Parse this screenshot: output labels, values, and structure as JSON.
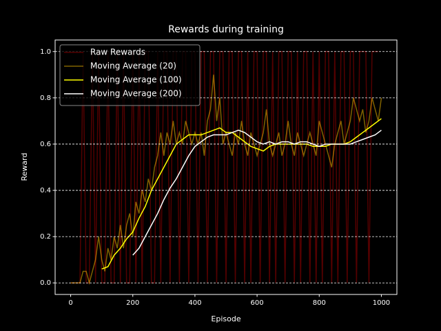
{
  "chart_data": {
    "type": "line",
    "title": "Rewards during training",
    "xlabel": "Episode",
    "ylabel": "Reward",
    "xlim": [
      -50,
      1050
    ],
    "ylim": [
      -0.05,
      1.05
    ],
    "xticks": [
      0,
      200,
      400,
      600,
      800,
      1000
    ],
    "yticks": [
      {
        "value": 0,
        "label": "0.0"
      },
      {
        "value": 0.2,
        "label": "0.2"
      },
      {
        "value": 0.4,
        "label": "0.4"
      },
      {
        "value": 0.6,
        "label": "0.6"
      },
      {
        "value": 0.8,
        "label": "0.8"
      },
      {
        "value": 1,
        "label": "1.0"
      }
    ],
    "grid": "y",
    "legend": "upper left",
    "series": [
      {
        "name": "Raw Rewards",
        "color": "#8b0000",
        "alpha": 0.6,
        "x": [
          0,
          10,
          20,
          30,
          40,
          50,
          60,
          70,
          80,
          90,
          100,
          110,
          120,
          130,
          140,
          150,
          160,
          170,
          180,
          190,
          200,
          210,
          220,
          230,
          240,
          250,
          260,
          270,
          280,
          290,
          300,
          310,
          320,
          330,
          340,
          350,
          360,
          370,
          380,
          390,
          400,
          410,
          420,
          430,
          440,
          450,
          460,
          470,
          480,
          490,
          500,
          510,
          520,
          530,
          540,
          550,
          560,
          570,
          580,
          590,
          600,
          610,
          620,
          630,
          640,
          650,
          660,
          670,
          680,
          690,
          700,
          710,
          720,
          730,
          740,
          750,
          760,
          770,
          780,
          790,
          800,
          810,
          820,
          830,
          840,
          850,
          860,
          870,
          880,
          890,
          900,
          910,
          920,
          930,
          940,
          950,
          960,
          970,
          980,
          990
        ],
        "values": [
          0,
          0,
          0,
          0,
          1,
          0,
          0,
          1,
          0,
          1,
          0,
          0,
          1,
          0,
          0,
          1,
          0,
          1,
          0,
          0,
          1,
          0,
          1,
          0,
          1,
          1,
          0,
          0,
          1,
          0,
          1,
          1,
          0,
          1,
          1,
          0,
          1,
          1,
          0,
          1,
          1,
          0,
          1,
          1,
          0,
          1,
          1,
          0,
          1,
          1,
          0,
          1,
          1,
          0,
          1,
          1,
          0,
          1,
          0,
          1,
          1,
          0,
          1,
          1,
          0,
          1,
          0,
          1,
          1,
          0,
          1,
          1,
          0,
          1,
          0,
          1,
          1,
          0,
          1,
          0,
          1,
          0,
          1,
          1,
          0,
          1,
          0,
          1,
          1,
          0,
          1,
          1,
          0,
          1,
          1,
          1,
          0,
          1,
          1,
          1
        ]
      },
      {
        "name": "Moving Average (20)",
        "color": "#ffc400",
        "alpha": 0.5,
        "x": [
          0,
          10,
          20,
          30,
          40,
          50,
          60,
          70,
          80,
          90,
          100,
          110,
          120,
          130,
          140,
          150,
          160,
          170,
          180,
          190,
          200,
          210,
          220,
          230,
          240,
          250,
          260,
          270,
          280,
          290,
          300,
          310,
          320,
          330,
          340,
          350,
          360,
          370,
          380,
          390,
          400,
          410,
          420,
          430,
          440,
          450,
          460,
          470,
          480,
          490,
          500,
          510,
          520,
          530,
          540,
          550,
          560,
          570,
          580,
          590,
          600,
          610,
          620,
          630,
          640,
          650,
          660,
          670,
          680,
          690,
          700,
          710,
          720,
          730,
          740,
          750,
          760,
          770,
          780,
          790,
          800,
          810,
          820,
          830,
          840,
          850,
          860,
          870,
          880,
          890,
          900,
          910,
          920,
          930,
          940,
          950,
          960,
          970,
          980,
          990,
          1000
        ],
        "values": [
          0,
          0,
          0,
          0,
          0.05,
          0.05,
          0,
          0.05,
          0.1,
          0.2,
          0.1,
          0.05,
          0.15,
          0.1,
          0.2,
          0.15,
          0.25,
          0.15,
          0.25,
          0.3,
          0.2,
          0.35,
          0.3,
          0.4,
          0.35,
          0.45,
          0.4,
          0.5,
          0.55,
          0.65,
          0.55,
          0.65,
          0.6,
          0.7,
          0.6,
          0.65,
          0.6,
          0.7,
          0.65,
          0.6,
          0.65,
          0.6,
          0.65,
          0.55,
          0.7,
          0.75,
          0.9,
          0.7,
          0.8,
          0.6,
          0.65,
          0.6,
          0.55,
          0.65,
          0.6,
          0.7,
          0.6,
          0.55,
          0.65,
          0.6,
          0.55,
          0.6,
          0.65,
          0.75,
          0.6,
          0.55,
          0.6,
          0.65,
          0.55,
          0.6,
          0.7,
          0.6,
          0.55,
          0.65,
          0.6,
          0.55,
          0.6,
          0.65,
          0.6,
          0.55,
          0.7,
          0.65,
          0.6,
          0.55,
          0.5,
          0.6,
          0.65,
          0.7,
          0.6,
          0.65,
          0.7,
          0.8,
          0.75,
          0.7,
          0.75,
          0.65,
          0.7,
          0.8,
          0.75,
          0.7,
          0.8
        ]
      },
      {
        "name": "Moving Average (100)",
        "color": "#ffff00",
        "alpha": 1,
        "x": [
          100,
          120,
          140,
          160,
          180,
          200,
          220,
          240,
          260,
          280,
          300,
          320,
          340,
          360,
          380,
          400,
          420,
          440,
          460,
          480,
          500,
          520,
          540,
          560,
          580,
          600,
          620,
          640,
          660,
          680,
          700,
          720,
          740,
          760,
          780,
          800,
          820,
          840,
          860,
          880,
          900,
          920,
          940,
          960,
          980,
          1000
        ],
        "values": [
          0.06,
          0.07,
          0.12,
          0.15,
          0.19,
          0.22,
          0.28,
          0.33,
          0.4,
          0.45,
          0.5,
          0.55,
          0.6,
          0.62,
          0.64,
          0.64,
          0.64,
          0.65,
          0.66,
          0.67,
          0.65,
          0.65,
          0.63,
          0.61,
          0.59,
          0.58,
          0.57,
          0.59,
          0.6,
          0.6,
          0.6,
          0.6,
          0.6,
          0.6,
          0.59,
          0.59,
          0.59,
          0.6,
          0.6,
          0.6,
          0.61,
          0.63,
          0.65,
          0.67,
          0.69,
          0.71
        ]
      },
      {
        "name": "Moving Average (200)",
        "color": "#ffffff",
        "alpha": 1,
        "x": [
          200,
          220,
          240,
          260,
          280,
          300,
          320,
          340,
          360,
          380,
          400,
          420,
          440,
          460,
          480,
          500,
          520,
          540,
          560,
          580,
          600,
          620,
          640,
          660,
          680,
          700,
          720,
          740,
          760,
          780,
          800,
          820,
          840,
          860,
          880,
          900,
          920,
          940,
          960,
          980,
          1000
        ],
        "values": [
          0.12,
          0.15,
          0.2,
          0.25,
          0.3,
          0.36,
          0.41,
          0.45,
          0.5,
          0.55,
          0.59,
          0.61,
          0.63,
          0.64,
          0.64,
          0.64,
          0.65,
          0.66,
          0.65,
          0.63,
          0.61,
          0.6,
          0.61,
          0.6,
          0.61,
          0.61,
          0.6,
          0.61,
          0.61,
          0.6,
          0.59,
          0.6,
          0.6,
          0.6,
          0.6,
          0.6,
          0.61,
          0.62,
          0.63,
          0.64,
          0.66
        ]
      }
    ]
  }
}
